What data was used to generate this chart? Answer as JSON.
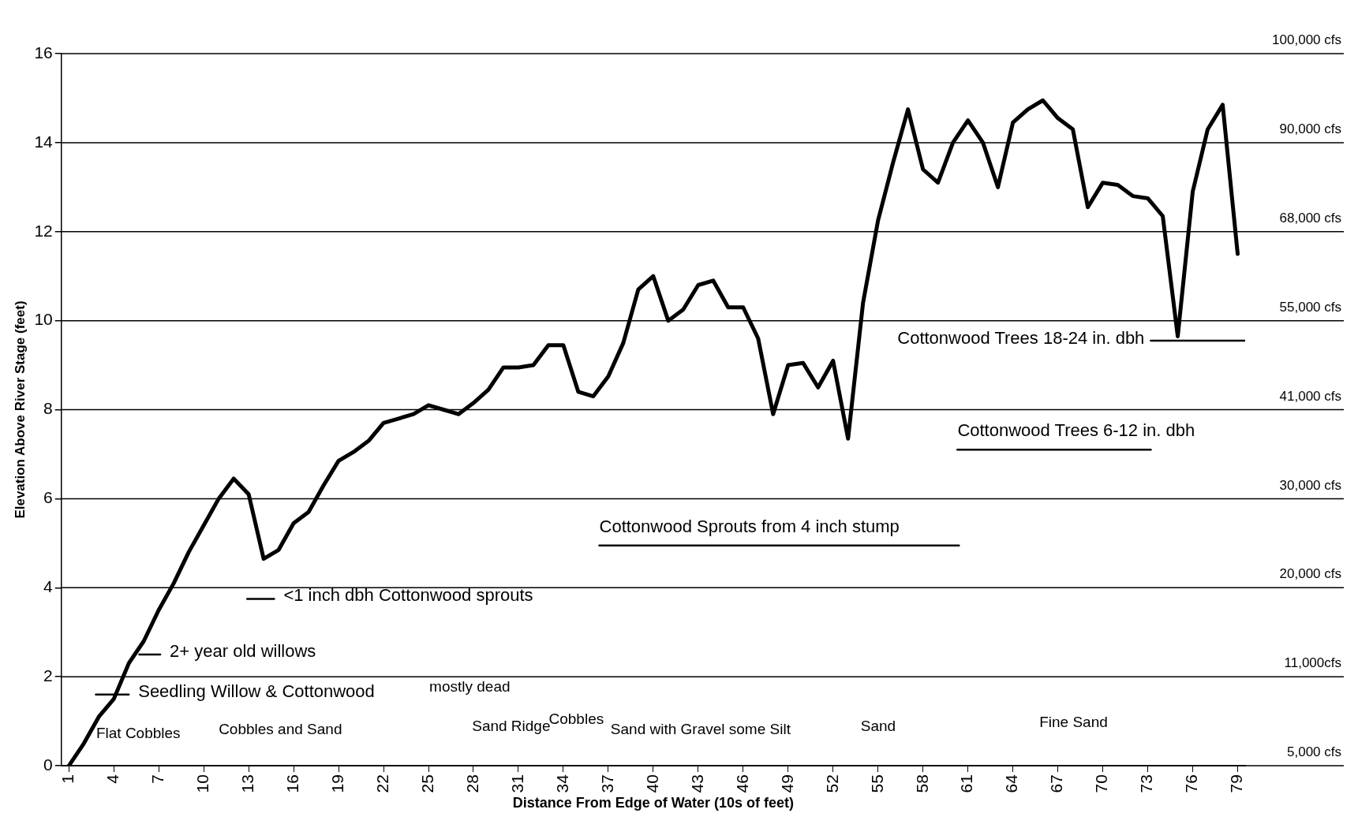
{
  "chart_data": {
    "type": "line",
    "xlabel": "Distance From Edge of Water (10s of feet)",
    "ylabel": "Elevation Above River Stage (feet)",
    "x": [
      1,
      2,
      3,
      4,
      5,
      6,
      7,
      8,
      9,
      10,
      11,
      12,
      13,
      14,
      15,
      16,
      17,
      18,
      19,
      20,
      21,
      22,
      23,
      24,
      25,
      26,
      27,
      28,
      29,
      30,
      31,
      32,
      33,
      34,
      35,
      36,
      37,
      38,
      39,
      40,
      41,
      42,
      43,
      44,
      45,
      46,
      47,
      48,
      49,
      50,
      51,
      52,
      53,
      54,
      55,
      56,
      57,
      58,
      59,
      60,
      61,
      62,
      63,
      64,
      65,
      66,
      67,
      68,
      69,
      70,
      71,
      72,
      73,
      74,
      75,
      76,
      77,
      78,
      79
    ],
    "series": [
      {
        "type": "line",
        "color": "#000000",
        "values": [
          0,
          0.5,
          1.1,
          1.5,
          2.3,
          2.8,
          3.5,
          4.1,
          4.8,
          5.4,
          6,
          6.45,
          6.1,
          4.65,
          4.85,
          5.45,
          5.7,
          6.3,
          6.85,
          7.05,
          7.3,
          7.7,
          7.8,
          7.9,
          8.1,
          8,
          7.9,
          8.15,
          8.45,
          8.95,
          8.95,
          9,
          9.45,
          9.45,
          8.4,
          8.3,
          8.75,
          9.5,
          10.7,
          11,
          10,
          10.25,
          10.8,
          10.9,
          10.3,
          10.3,
          9.6,
          7.9,
          9,
          9.05,
          8.5,
          9.1,
          7.35,
          10.4,
          12.25,
          13.55,
          14.75,
          13.4,
          13.1,
          14,
          14.5,
          14,
          13,
          14.45,
          14.75,
          14.95,
          14.55,
          14.3,
          12.55,
          13.1,
          13.05,
          12.8,
          12.75,
          12.35,
          9.65,
          12.9,
          14.3,
          14.85,
          11.5
        ]
      },
      {
        "type": "line",
        "name": "Seedling Willow & Cottonwood",
        "color": "#000000",
        "x": [
          2.8,
          5
        ],
        "values": [
          1.6,
          1.6
        ]
      },
      {
        "type": "line",
        "name": "2+ year old willows",
        "color": "#000000",
        "x": [
          5.7,
          7.1
        ],
        "values": [
          2.5,
          2.5
        ]
      },
      {
        "type": "line",
        "name": "<1 inch dbh Cottonwood sprouts",
        "color": "#000000",
        "x": [
          12.9,
          14.7
        ],
        "values": [
          3.75,
          3.75
        ]
      },
      {
        "type": "line",
        "name": "Cottonwood Sprouts from 4 inch stump",
        "color": "#000000",
        "x": [
          36.4,
          60.4
        ],
        "values": [
          4.95,
          4.95
        ]
      },
      {
        "type": "line",
        "name": "Cottonwood Trees 6-12 in. dbh",
        "color": "#000000",
        "x": [
          60.3,
          73.2
        ],
        "values": [
          7.1,
          7.1
        ]
      },
      {
        "type": "line",
        "name": "Cottonwood Trees 18-24 in. dbh",
        "color": "#000000",
        "x": [
          73.2,
          79.5
        ],
        "values": [
          9.55,
          9.55
        ]
      }
    ],
    "xlim": [
      0.5,
      79.5
    ],
    "xticks": [
      1,
      4,
      7,
      10,
      13,
      16,
      19,
      22,
      25,
      28,
      31,
      34,
      37,
      40,
      43,
      46,
      49,
      52,
      55,
      58,
      61,
      64,
      67,
      70,
      73,
      76,
      79
    ],
    "ylim": [
      0,
      16
    ],
    "yticks": [
      0,
      2,
      4,
      6,
      8,
      10,
      12,
      14,
      16
    ],
    "legend": false,
    "marker": "none",
    "line_style": "solid",
    "ref_lines": [
      {
        "axis": "y",
        "value": 0,
        "label": "5,000 cfs"
      },
      {
        "axis": "y",
        "value": 2,
        "label": "11,000cfs"
      },
      {
        "axis": "y",
        "value": 4,
        "label": "20,000 cfs"
      },
      {
        "axis": "y",
        "value": 6,
        "label": "30,000 cfs"
      },
      {
        "axis": "y",
        "value": 8,
        "label": "41,000 cfs"
      },
      {
        "axis": "y",
        "value": 10,
        "label": "55,000 cfs"
      },
      {
        "axis": "y",
        "value": 12,
        "label": "68,000 cfs"
      },
      {
        "axis": "y",
        "value": 14,
        "label": "90,000 cfs"
      },
      {
        "axis": "y",
        "value": 16,
        "label": "100,000 cfs"
      }
    ],
    "annotations": [
      "Flat Cobbles",
      "Cobbles and Sand",
      "mostly dead",
      "Sand Ridge",
      "Cobbles",
      "Sand with Gravel some Silt",
      "Sand",
      "Fine Sand"
    ]
  }
}
